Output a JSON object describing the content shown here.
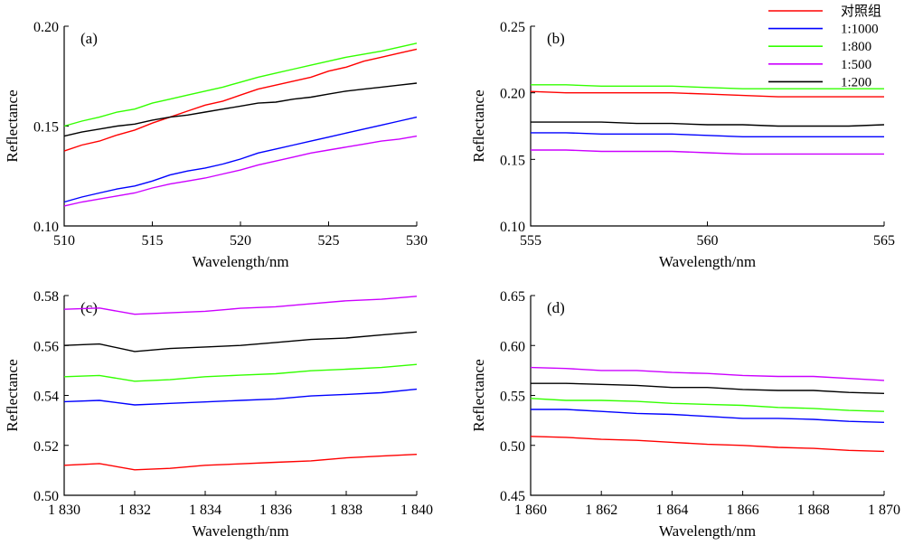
{
  "legend": [
    {
      "name": "对照组",
      "color": "#ff0000"
    },
    {
      "name": "1:1000",
      "color": "#0000ff"
    },
    {
      "name": "1:800",
      "color": "#33ff00"
    },
    {
      "name": "1:500",
      "color": "#cc00ff"
    },
    {
      "name": "1:200",
      "color": "#000000"
    }
  ],
  "chart_data": [
    {
      "type": "line",
      "panel_label": "(a)",
      "xlabel": "Wavelength/nm",
      "ylabel": "Reflectance",
      "xlim": [
        510,
        530
      ],
      "ylim": [
        0.1,
        0.2
      ],
      "xticks": [
        510,
        515,
        520,
        525,
        530
      ],
      "xtick_labels": [
        "510",
        "515",
        "520",
        "525",
        "530"
      ],
      "yticks": [
        0.1,
        0.15,
        0.2
      ],
      "ytick_labels": [
        "0.10",
        "0.15",
        "0.20"
      ],
      "x": [
        510,
        511,
        512,
        513,
        514,
        515,
        516,
        517,
        518,
        519,
        520,
        521,
        522,
        523,
        524,
        525,
        526,
        527,
        528,
        529,
        530
      ],
      "series": [
        {
          "name": "对照组",
          "values": [
            0.1375,
            0.1405,
            0.1425,
            0.1455,
            0.148,
            0.1515,
            0.1545,
            0.1575,
            0.1605,
            0.1625,
            0.1655,
            0.1685,
            0.1705,
            0.1725,
            0.1745,
            0.1775,
            0.1795,
            0.1825,
            0.1845,
            0.1865,
            0.1885
          ]
        },
        {
          "name": "1:1000",
          "values": [
            0.112,
            0.1145,
            0.1165,
            0.1185,
            0.12,
            0.1225,
            0.1255,
            0.1275,
            0.129,
            0.131,
            0.1335,
            0.1365,
            0.1385,
            0.1405,
            0.1425,
            0.1445,
            0.1465,
            0.1485,
            0.1505,
            0.1525,
            0.1545
          ]
        },
        {
          "name": "1:800",
          "values": [
            0.15,
            0.1525,
            0.1545,
            0.157,
            0.1585,
            0.1615,
            0.1635,
            0.1655,
            0.1675,
            0.1695,
            0.172,
            0.1745,
            0.1765,
            0.1785,
            0.1805,
            0.1825,
            0.1845,
            0.186,
            0.1875,
            0.1895,
            0.1915
          ]
        },
        {
          "name": "1:500",
          "values": [
            0.11,
            0.112,
            0.1135,
            0.115,
            0.1165,
            0.119,
            0.121,
            0.1225,
            0.124,
            0.126,
            0.128,
            0.1305,
            0.1325,
            0.1345,
            0.1365,
            0.138,
            0.1395,
            0.141,
            0.1425,
            0.1435,
            0.145
          ]
        },
        {
          "name": "1:200",
          "values": [
            0.145,
            0.147,
            0.1485,
            0.15,
            0.151,
            0.153,
            0.1545,
            0.1555,
            0.157,
            0.1585,
            0.16,
            0.1615,
            0.162,
            0.1635,
            0.1645,
            0.166,
            0.1675,
            0.1685,
            0.1695,
            0.1705,
            0.1715
          ]
        }
      ]
    },
    {
      "type": "line",
      "panel_label": "(b)",
      "xlabel": "Wavelength/nm",
      "ylabel": "Reflectance",
      "xlim": [
        555,
        565
      ],
      "ylim": [
        0.1,
        0.25
      ],
      "xticks": [
        555,
        560,
        565
      ],
      "xtick_labels": [
        "555",
        "560",
        "565"
      ],
      "yticks": [
        0.1,
        0.15,
        0.2,
        0.25
      ],
      "ytick_labels": [
        "0.10",
        "0.15",
        "0.20",
        "0.25"
      ],
      "x": [
        555,
        556,
        557,
        558,
        559,
        560,
        561,
        562,
        563,
        564,
        565
      ],
      "series": [
        {
          "name": "对照组",
          "values": [
            0.201,
            0.2,
            0.2,
            0.2,
            0.2,
            0.199,
            0.198,
            0.197,
            0.197,
            0.197,
            0.197
          ]
        },
        {
          "name": "1:1000",
          "values": [
            0.17,
            0.17,
            0.169,
            0.169,
            0.169,
            0.168,
            0.167,
            0.167,
            0.167,
            0.167,
            0.167
          ]
        },
        {
          "name": "1:800",
          "values": [
            0.206,
            0.206,
            0.205,
            0.205,
            0.205,
            0.204,
            0.203,
            0.203,
            0.203,
            0.203,
            0.203
          ]
        },
        {
          "name": "1:500",
          "values": [
            0.157,
            0.157,
            0.156,
            0.156,
            0.156,
            0.155,
            0.154,
            0.154,
            0.154,
            0.154,
            0.154
          ]
        },
        {
          "name": "1:200",
          "values": [
            0.178,
            0.178,
            0.178,
            0.177,
            0.177,
            0.176,
            0.176,
            0.175,
            0.175,
            0.175,
            0.176
          ]
        }
      ]
    },
    {
      "type": "line",
      "panel_label": "(c)",
      "xlabel": "Wavelength/nm",
      "ylabel": "Reflectance",
      "xlim": [
        1830,
        1840
      ],
      "ylim": [
        0.5,
        0.58
      ],
      "xticks": [
        1830,
        1832,
        1834,
        1836,
        1838,
        1840
      ],
      "xtick_labels": [
        "1 830",
        "1 832",
        "1 834",
        "1 836",
        "1 838",
        "1 840"
      ],
      "yticks": [
        0.5,
        0.52,
        0.54,
        0.56,
        0.58
      ],
      "ytick_labels": [
        "0.50",
        "0.52",
        "0.54",
        "0.56",
        "0.58"
      ],
      "x": [
        1830,
        1831,
        1832,
        1833,
        1834,
        1835,
        1836,
        1837,
        1838,
        1839,
        1840
      ],
      "series": [
        {
          "name": "对照组",
          "values": [
            0.512,
            0.5127,
            0.5102,
            0.5108,
            0.512,
            0.5126,
            0.5132,
            0.5138,
            0.515,
            0.5157,
            0.5164
          ]
        },
        {
          "name": "1:1000",
          "values": [
            0.5375,
            0.538,
            0.5362,
            0.5368,
            0.5374,
            0.538,
            0.5386,
            0.5398,
            0.5404,
            0.5411,
            0.5425
          ]
        },
        {
          "name": "1:800",
          "values": [
            0.5475,
            0.548,
            0.5457,
            0.5463,
            0.5475,
            0.5481,
            0.5487,
            0.5499,
            0.5505,
            0.5512,
            0.5524
          ]
        },
        {
          "name": "1:500",
          "values": [
            0.5745,
            0.575,
            0.5725,
            0.5731,
            0.5737,
            0.5749,
            0.5755,
            0.5767,
            0.5779,
            0.5785,
            0.5797
          ]
        },
        {
          "name": "1:200",
          "values": [
            0.56,
            0.5606,
            0.5576,
            0.5588,
            0.5594,
            0.56,
            0.5612,
            0.5624,
            0.563,
            0.5642,
            0.5654
          ]
        }
      ]
    },
    {
      "type": "line",
      "panel_label": "(d)",
      "xlabel": "Wavelength/nm",
      "ylabel": "Reflectance",
      "xlim": [
        1860,
        1870
      ],
      "ylim": [
        0.45,
        0.65
      ],
      "xticks": [
        1860,
        1862,
        1864,
        1866,
        1868,
        1870
      ],
      "xtick_labels": [
        "1 860",
        "1 862",
        "1 864",
        "1 866",
        "1 868",
        "1 870"
      ],
      "yticks": [
        0.45,
        0.5,
        0.55,
        0.6,
        0.65
      ],
      "ytick_labels": [
        "0.45",
        "0.50",
        "0.55",
        "0.60",
        "0.65"
      ],
      "x": [
        1860,
        1861,
        1862,
        1863,
        1864,
        1865,
        1866,
        1867,
        1868,
        1869,
        1870
      ],
      "series": [
        {
          "name": "对照组",
          "values": [
            0.509,
            0.508,
            0.506,
            0.505,
            0.503,
            0.501,
            0.5,
            0.498,
            0.497,
            0.495,
            0.494
          ]
        },
        {
          "name": "1:1000",
          "values": [
            0.536,
            0.536,
            0.534,
            0.532,
            0.531,
            0.529,
            0.527,
            0.527,
            0.526,
            0.524,
            0.523
          ]
        },
        {
          "name": "1:800",
          "values": [
            0.547,
            0.545,
            0.545,
            0.544,
            0.542,
            0.541,
            0.54,
            0.538,
            0.537,
            0.535,
            0.534
          ]
        },
        {
          "name": "1:500",
          "values": [
            0.578,
            0.577,
            0.575,
            0.575,
            0.573,
            0.572,
            0.57,
            0.569,
            0.569,
            0.567,
            0.565
          ]
        },
        {
          "name": "1:200",
          "values": [
            0.562,
            0.562,
            0.561,
            0.56,
            0.558,
            0.558,
            0.556,
            0.555,
            0.555,
            0.553,
            0.552
          ]
        }
      ]
    }
  ]
}
